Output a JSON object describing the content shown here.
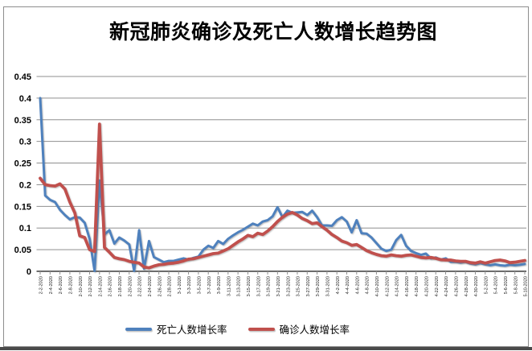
{
  "title": "新冠肺炎确诊及死亡人数增长趋势图",
  "colors": {
    "death_series": "#4F81BD",
    "confirmed_series": "#C0504D",
    "gridline": "#8f8f8f",
    "axis_line": "#6d6d6d",
    "axis_label": "#000000",
    "x_label": "#1a1a1a",
    "frame_border": "#8e8e8e",
    "bottom_bar": "#4a4a4a"
  },
  "legend": [
    {
      "label": "死亡人数增长率",
      "color": "#4F81BD"
    },
    {
      "label": "确诊人数增长率",
      "color": "#C0504D"
    }
  ],
  "chart_data": {
    "type": "line",
    "title": "新冠肺炎确诊及死亡人数增长趋势图",
    "xlabel": "",
    "ylabel": "",
    "ylim": [
      0,
      0.45
    ],
    "ytick_step": 0.05,
    "yticks": [
      "0.45",
      "0.4",
      "0.35",
      "0.3",
      "0.25",
      "0.2",
      "0.15",
      "0.1",
      "0.05",
      "0"
    ],
    "xtick_label_every": 2,
    "grid": true,
    "legend_position": "bottom",
    "x": [
      "2-2-2020",
      "2-3-2020",
      "2-4-2020",
      "2-5-2020",
      "2-6-2020",
      "2-7-2020",
      "2-8-2020",
      "2-9-2020",
      "2-10-2020",
      "2-11-2020",
      "2-12-2020",
      "2-13-2020",
      "2-14-2020",
      "2-15-2020",
      "2-16-2020",
      "2-17-2020",
      "2-18-2020",
      "2-19-2020",
      "2-20-2020",
      "2-21-2020",
      "2-22-2020",
      "2-23-2020",
      "2-24-2020",
      "2-25-2020",
      "2-26-2020",
      "2-27-2020",
      "2-28-2020",
      "2-29-2020",
      "3-1-2020",
      "3-2-2020",
      "3-3-2020",
      "3-4-2020",
      "3-5-2020",
      "3-6-2020",
      "3-7-2020",
      "3-8-2020",
      "3-9-2020",
      "3-10-2020",
      "3-11-2020",
      "3-12-2020",
      "3-13-2020",
      "3-14-2020",
      "3-15-2020",
      "3-16-2020",
      "3-17-2020",
      "3-18-2020",
      "3-19-2020",
      "3-20-2020",
      "3-21-2020",
      "3-22-2020",
      "3-23-2020",
      "3-24-2020",
      "3-25-2020",
      "3-26-2020",
      "3-27-2020",
      "3-28-2020",
      "3-29-2020",
      "3-30-2020",
      "3-31-2020",
      "4-1-2020",
      "4-2-2020",
      "4-3-2020",
      "4-4-2020",
      "4-5-2020",
      "4-6-2020",
      "4-7-2020",
      "4-8-2020",
      "4-9-2020",
      "4-10-2020",
      "4-11-2020",
      "4-12-2020",
      "4-13-2020",
      "4-14-2020",
      "4-15-2020",
      "4-16-2020",
      "4-17-2020",
      "4-18-2020",
      "4-19-2020",
      "4-20-2020",
      "4-21-2020",
      "4-22-2020",
      "4-23-2020",
      "4-24-2020",
      "4-25-2020",
      "4-26-2020",
      "4-27-2020",
      "4-28-2020",
      "4-29-2020",
      "4-30-2020",
      "5-1-2020",
      "5-2-2020",
      "5-3-2020",
      "5-4-2020",
      "5-5-2020",
      "5-6-2020",
      "5-7-2020",
      "5-8-2020",
      "5-9-2020",
      "5-10-2020"
    ],
    "series": [
      {
        "name": "死亡人数增长率",
        "color": "#4F81BD",
        "values": [
          0.4,
          0.175,
          0.165,
          0.16,
          0.142,
          0.13,
          0.12,
          0.125,
          0.124,
          0.112,
          0.075,
          0.001,
          0.21,
          0.085,
          0.095,
          0.064,
          0.078,
          0.071,
          0.062,
          0.001,
          0.095,
          0.006,
          0.07,
          0.033,
          0.027,
          0.021,
          0.024,
          0.024,
          0.027,
          0.03,
          0.027,
          0.031,
          0.034,
          0.05,
          0.059,
          0.054,
          0.07,
          0.063,
          0.075,
          0.083,
          0.09,
          0.096,
          0.103,
          0.11,
          0.106,
          0.115,
          0.118,
          0.127,
          0.148,
          0.125,
          0.14,
          0.135,
          0.136,
          0.137,
          0.13,
          0.14,
          0.125,
          0.106,
          0.106,
          0.105,
          0.118,
          0.125,
          0.115,
          0.09,
          0.118,
          0.088,
          0.087,
          0.078,
          0.065,
          0.052,
          0.047,
          0.05,
          0.072,
          0.084,
          0.059,
          0.047,
          0.042,
          0.038,
          0.041,
          0.03,
          0.032,
          0.027,
          0.03,
          0.022,
          0.022,
          0.02,
          0.022,
          0.018,
          0.016,
          0.019,
          0.016,
          0.014,
          0.016,
          0.014,
          0.013,
          0.015,
          0.014,
          0.015,
          0.017
        ]
      },
      {
        "name": "确诊人数增长率",
        "color": "#C0504D",
        "values": [
          0.215,
          0.2,
          0.198,
          0.197,
          0.202,
          0.19,
          0.16,
          0.135,
          0.082,
          0.078,
          0.05,
          0.046,
          0.34,
          0.055,
          0.044,
          0.032,
          0.029,
          0.027,
          0.023,
          0.021,
          0.019,
          0.01,
          0.008,
          0.012,
          0.015,
          0.016,
          0.018,
          0.019,
          0.021,
          0.024,
          0.028,
          0.029,
          0.032,
          0.035,
          0.038,
          0.041,
          0.042,
          0.047,
          0.052,
          0.06,
          0.068,
          0.075,
          0.083,
          0.08,
          0.088,
          0.085,
          0.093,
          0.103,
          0.115,
          0.125,
          0.132,
          0.136,
          0.13,
          0.122,
          0.117,
          0.11,
          0.112,
          0.103,
          0.095,
          0.085,
          0.078,
          0.07,
          0.066,
          0.06,
          0.062,
          0.055,
          0.048,
          0.043,
          0.039,
          0.036,
          0.035,
          0.038,
          0.036,
          0.035,
          0.037,
          0.038,
          0.035,
          0.032,
          0.031,
          0.032,
          0.03,
          0.027,
          0.026,
          0.026,
          0.024,
          0.023,
          0.023,
          0.02,
          0.019,
          0.022,
          0.019,
          0.022,
          0.025,
          0.026,
          0.024,
          0.02,
          0.021,
          0.023,
          0.025
        ]
      }
    ]
  }
}
